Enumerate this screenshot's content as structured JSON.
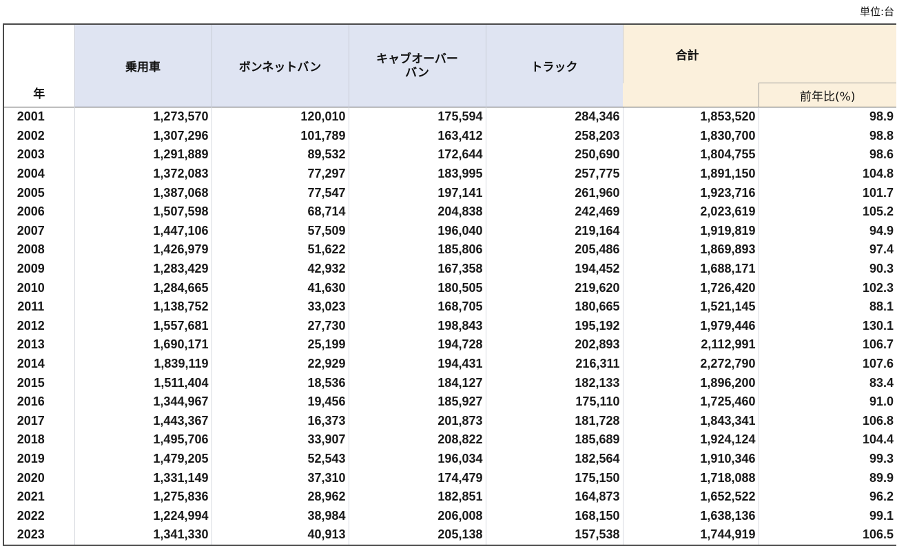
{
  "unit_label": "単位:台",
  "headers": {
    "year": "年",
    "passenger": "乗用車",
    "bonnet_van": "ボンネットバン",
    "cab_over_van_line1": "キャブオーバー",
    "cab_over_van_line2": "バン",
    "truck": "トラック",
    "total": "合計",
    "yoy": "前年比(%)"
  },
  "rows": [
    {
      "year": "2001",
      "passenger": "1,273,570",
      "bonnet_van": "120,010",
      "cab_over_van": "175,594",
      "truck": "284,346",
      "total": "1,853,520",
      "yoy": "98.9"
    },
    {
      "year": "2002",
      "passenger": "1,307,296",
      "bonnet_van": "101,789",
      "cab_over_van": "163,412",
      "truck": "258,203",
      "total": "1,830,700",
      "yoy": "98.8"
    },
    {
      "year": "2003",
      "passenger": "1,291,889",
      "bonnet_van": "89,532",
      "cab_over_van": "172,644",
      "truck": "250,690",
      "total": "1,804,755",
      "yoy": "98.6"
    },
    {
      "year": "2004",
      "passenger": "1,372,083",
      "bonnet_van": "77,297",
      "cab_over_van": "183,995",
      "truck": "257,775",
      "total": "1,891,150",
      "yoy": "104.8"
    },
    {
      "year": "2005",
      "passenger": "1,387,068",
      "bonnet_van": "77,547",
      "cab_over_van": "197,141",
      "truck": "261,960",
      "total": "1,923,716",
      "yoy": "101.7"
    },
    {
      "year": "2006",
      "passenger": "1,507,598",
      "bonnet_van": "68,714",
      "cab_over_van": "204,838",
      "truck": "242,469",
      "total": "2,023,619",
      "yoy": "105.2"
    },
    {
      "year": "2007",
      "passenger": "1,447,106",
      "bonnet_van": "57,509",
      "cab_over_van": "196,040",
      "truck": "219,164",
      "total": "1,919,819",
      "yoy": "94.9"
    },
    {
      "year": "2008",
      "passenger": "1,426,979",
      "bonnet_van": "51,622",
      "cab_over_van": "185,806",
      "truck": "205,486",
      "total": "1,869,893",
      "yoy": "97.4"
    },
    {
      "year": "2009",
      "passenger": "1,283,429",
      "bonnet_van": "42,932",
      "cab_over_van": "167,358",
      "truck": "194,452",
      "total": "1,688,171",
      "yoy": "90.3"
    },
    {
      "year": "2010",
      "passenger": "1,284,665",
      "bonnet_van": "41,630",
      "cab_over_van": "180,505",
      "truck": "219,620",
      "total": "1,726,420",
      "yoy": "102.3"
    },
    {
      "year": "2011",
      "passenger": "1,138,752",
      "bonnet_van": "33,023",
      "cab_over_van": "168,705",
      "truck": "180,665",
      "total": "1,521,145",
      "yoy": "88.1"
    },
    {
      "year": "2012",
      "passenger": "1,557,681",
      "bonnet_van": "27,730",
      "cab_over_van": "198,843",
      "truck": "195,192",
      "total": "1,979,446",
      "yoy": "130.1"
    },
    {
      "year": "2013",
      "passenger": "1,690,171",
      "bonnet_van": "25,199",
      "cab_over_van": "194,728",
      "truck": "202,893",
      "total": "2,112,991",
      "yoy": "106.7"
    },
    {
      "year": "2014",
      "passenger": "1,839,119",
      "bonnet_van": "22,929",
      "cab_over_van": "194,431",
      "truck": "216,311",
      "total": "2,272,790",
      "yoy": "107.6"
    },
    {
      "year": "2015",
      "passenger": "1,511,404",
      "bonnet_van": "18,536",
      "cab_over_van": "184,127",
      "truck": "182,133",
      "total": "1,896,200",
      "yoy": "83.4"
    },
    {
      "year": "2016",
      "passenger": "1,344,967",
      "bonnet_van": "19,456",
      "cab_over_van": "185,927",
      "truck": "175,110",
      "total": "1,725,460",
      "yoy": "91.0"
    },
    {
      "year": "2017",
      "passenger": "1,443,367",
      "bonnet_van": "16,373",
      "cab_over_van": "201,873",
      "truck": "181,728",
      "total": "1,843,341",
      "yoy": "106.8"
    },
    {
      "year": "2018",
      "passenger": "1,495,706",
      "bonnet_van": "33,907",
      "cab_over_van": "208,822",
      "truck": "185,689",
      "total": "1,924,124",
      "yoy": "104.4"
    },
    {
      "year": "2019",
      "passenger": "1,479,205",
      "bonnet_van": "52,543",
      "cab_over_van": "196,034",
      "truck": "182,564",
      "total": "1,910,346",
      "yoy": "99.3"
    },
    {
      "year": "2020",
      "passenger": "1,331,149",
      "bonnet_van": "37,310",
      "cab_over_van": "174,479",
      "truck": "175,150",
      "total": "1,718,088",
      "yoy": "89.9"
    },
    {
      "year": "2021",
      "passenger": "1,275,836",
      "bonnet_van": "28,962",
      "cab_over_van": "182,851",
      "truck": "164,873",
      "total": "1,652,522",
      "yoy": "96.2"
    },
    {
      "year": "2022",
      "passenger": "1,224,994",
      "bonnet_van": "38,984",
      "cab_over_van": "206,008",
      "truck": "168,150",
      "total": "1,638,136",
      "yoy": "99.1"
    },
    {
      "year": "2023",
      "passenger": "1,341,330",
      "bonnet_van": "40,913",
      "cab_over_van": "205,138",
      "truck": "157,538",
      "total": "1,744,919",
      "yoy": "106.5"
    }
  ],
  "colors": {
    "category_header_bg": "#dfe4f2",
    "total_header_bg": "#fbf0dc",
    "border_dark": "#4a4a4a"
  }
}
